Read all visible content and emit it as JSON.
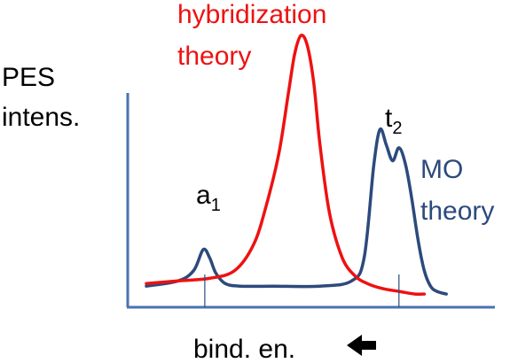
{
  "chart_data": {
    "type": "line",
    "title": "",
    "ylabel_lines": [
      "PES",
      "intens."
    ],
    "xlabel": "bind. en.",
    "xlabel_arrow": "←",
    "x_range": [
      0,
      100
    ],
    "y_range": [
      0,
      100
    ],
    "series": [
      {
        "name_lines": [
          "hybridization",
          "theory"
        ],
        "color": "#ee1111",
        "x": [
          0,
          10,
          20,
          28,
          34,
          38,
          42,
          45,
          47,
          49,
          51,
          53,
          55,
          58,
          62,
          66,
          70,
          75,
          80,
          85,
          88
        ],
        "y": [
          5,
          6,
          7,
          10,
          20,
          35,
          55,
          78,
          93,
          100,
          96,
          82,
          58,
          32,
          15,
          8,
          5,
          3,
          2,
          1,
          1
        ]
      },
      {
        "name_lines": [
          "MO",
          "theory"
        ],
        "color": "#2c4a7c",
        "x": [
          0,
          10,
          15,
          18,
          20,
          22,
          25,
          30,
          40,
          55,
          65,
          69,
          72,
          74,
          76,
          78,
          80,
          82,
          84,
          86,
          88,
          90,
          92,
          95
        ],
        "y": [
          4,
          6,
          10,
          18,
          15,
          9,
          5,
          4,
          4,
          4,
          6,
          15,
          50,
          64,
          58,
          52,
          57,
          51,
          38,
          22,
          10,
          4,
          2,
          1
        ]
      }
    ],
    "annotations": [
      {
        "base": "a",
        "sub": "1",
        "x": 18.5
      },
      {
        "base": "t",
        "sub": "2",
        "x": 80
      }
    ]
  }
}
